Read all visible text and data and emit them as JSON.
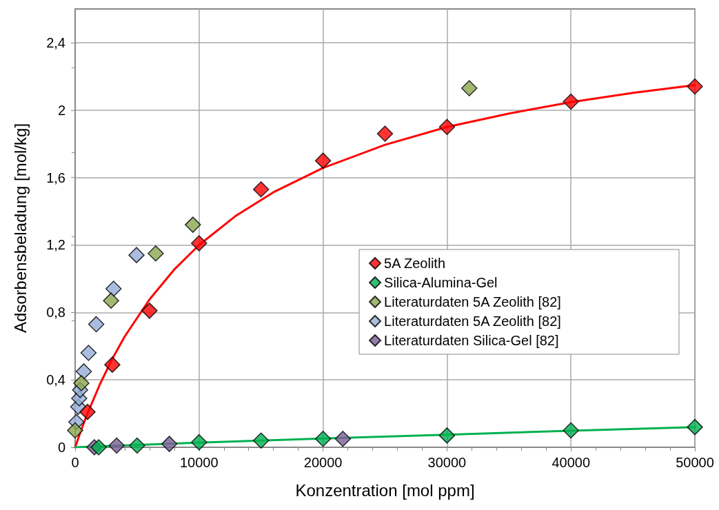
{
  "chart_data": {
    "type": "scatter",
    "xlabel": "Konzentration [mol ppm]",
    "ylabel": "Adsorbensbeladung [mol/kg]",
    "xlim": [
      0,
      50000
    ],
    "xticks": [
      0,
      10000,
      20000,
      30000,
      40000,
      50000
    ],
    "ylim": [
      0,
      2.6
    ],
    "yticks": [
      0,
      {
        "value": 0.4,
        "label": "0,4"
      },
      {
        "value": 0.8,
        "label": "0,8"
      },
      {
        "value": 1.2,
        "label": "1,2"
      },
      {
        "value": 1.6,
        "label": "1,6"
      },
      2,
      {
        "value": 2.4,
        "label": "2,4"
      }
    ],
    "grid": true,
    "legend": "center right",
    "marker": "diamond",
    "series": [
      {
        "type": "line",
        "color": "#ff0000",
        "x": [
          0,
          500,
          1000,
          2000,
          3000,
          4000,
          6000,
          8000,
          10000,
          13000,
          16000,
          20000,
          25000,
          30000,
          35000,
          40000,
          45000,
          50000
        ],
        "values": [
          0,
          0.105,
          0.201,
          0.374,
          0.525,
          0.657,
          0.877,
          1.055,
          1.2,
          1.375,
          1.513,
          1.657,
          1.794,
          1.9,
          1.98,
          2.047,
          2.102,
          2.148
        ],
        "marker": "none"
      },
      {
        "type": "line",
        "color": "#00b050",
        "x": [
          0,
          10000,
          20000,
          30000,
          40000,
          50000
        ],
        "values": [
          0,
          0.028,
          0.052,
          0.075,
          0.098,
          0.12
        ],
        "marker": "none"
      },
      {
        "name": "5A Zeolith",
        "color": "#ff0000",
        "x": [
          1000,
          3000,
          6000,
          10000,
          15000,
          20000,
          25000,
          30000,
          40000,
          50000
        ],
        "values": [
          0.21,
          0.49,
          0.81,
          1.21,
          1.53,
          1.7,
          1.86,
          1.9,
          2.05,
          2.14
        ]
      },
      {
        "name": "Silica-Alumina-Gel",
        "color": "#00b050",
        "x": [
          1900,
          5000,
          10000,
          15000,
          20000,
          30000,
          40000,
          50000
        ],
        "values": [
          0,
          0.01,
          0.03,
          0.04,
          0.05,
          0.07,
          0.1,
          0.12
        ]
      },
      {
        "name": "Literaturdaten 5A Zeolith [82]",
        "color": "#8aa64f",
        "x": [
          0,
          300,
          500,
          2900,
          6500,
          9500,
          31800
        ],
        "values": [
          0.1,
          null,
          0.38,
          0.87,
          1.15,
          1.32,
          2.13
        ]
      },
      {
        "name": "Literaturdaten 5A Zeolith [82]",
        "color": "#95acd8",
        "x": [
          100,
          250,
          330,
          400,
          700,
          1080,
          1700,
          3100,
          4950
        ],
        "values": [
          0.15,
          0.24,
          0.29,
          0.34,
          0.45,
          0.56,
          0.73,
          0.94,
          1.14
        ]
      },
      {
        "name": "Literaturdaten Silica-Gel [82]",
        "color": "#7a5c96",
        "x": [
          1550,
          3350,
          7600,
          21600
        ],
        "values": [
          0,
          0.01,
          0.02,
          0.05
        ]
      }
    ]
  }
}
